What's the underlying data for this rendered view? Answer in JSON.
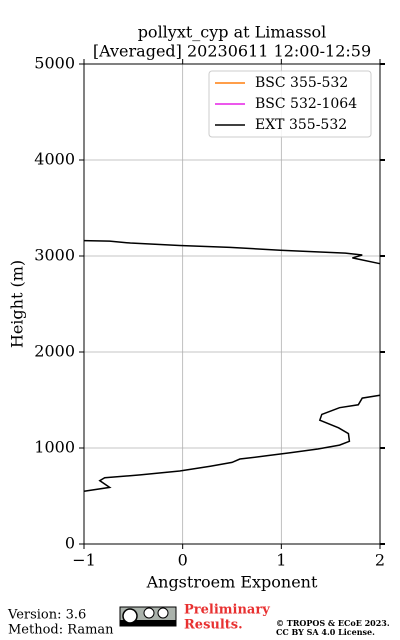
{
  "chart_data": {
    "type": "line",
    "title": "pollyxt_cyp at Limassol",
    "subtitle": "[Averaged] 20230611 12:00-12:59",
    "xlabel": "Angstroem Exponent",
    "ylabel": "Height (m)",
    "xlim": [
      -1,
      2
    ],
    "ylim": [
      0,
      5000
    ],
    "xticks": [
      {
        "value": -1,
        "label": "−1"
      },
      0,
      1,
      2
    ],
    "yticks": [
      0,
      1000,
      2000,
      3000,
      4000,
      5000
    ],
    "grid": true,
    "legend": "upper right",
    "heights": [
      550,
      590,
      660,
      690,
      720,
      760,
      810,
      850,
      885,
      920,
      950,
      990,
      1030,
      1070,
      1150,
      1210,
      1290,
      1350,
      1420,
      1450,
      1520,
      1550,
      2200,
      2920,
      2980,
      3010,
      3030,
      3060,
      3090,
      3110,
      3135,
      3155,
      3160
    ],
    "series": [
      {
        "name": "BSC 355-532",
        "color": "#ff7f0e",
        "values": [
          null,
          null,
          null,
          null,
          null,
          null,
          null,
          null,
          null,
          null,
          null,
          null,
          null,
          null,
          null,
          null,
          null,
          null,
          null,
          null,
          null,
          null,
          null,
          null,
          null,
          null,
          null,
          null,
          null,
          null,
          null,
          null,
          null
        ]
      },
      {
        "name": "BSC 532-1064",
        "color": "#e620e6",
        "values": [
          null,
          null,
          null,
          null,
          null,
          null,
          null,
          null,
          null,
          null,
          null,
          null,
          null,
          null,
          null,
          null,
          null,
          null,
          null,
          null,
          null,
          null,
          null,
          null,
          null,
          null,
          null,
          null,
          null,
          null,
          null,
          null,
          null
        ]
      },
      {
        "name": "EXT 355-532",
        "color": "#000000",
        "values": [
          -1.0,
          -0.74,
          -0.84,
          -0.79,
          -0.43,
          -0.03,
          0.28,
          0.5,
          0.58,
          0.86,
          1.09,
          1.37,
          1.59,
          1.69,
          1.68,
          1.58,
          1.39,
          1.41,
          1.59,
          1.78,
          1.82,
          2.0,
          null,
          2.0,
          1.72,
          1.82,
          1.65,
          0.99,
          0.48,
          -0.03,
          -0.53,
          -0.74,
          -1.0
        ]
      }
    ]
  },
  "footer": {
    "version": "Version: 3.6",
    "method": "Method: Raman",
    "preliminary": "Preliminary",
    "results": "Results.",
    "copyright": "© TROPOS & ECoE 2023.",
    "license": "CC BY SA 4.0 License."
  }
}
